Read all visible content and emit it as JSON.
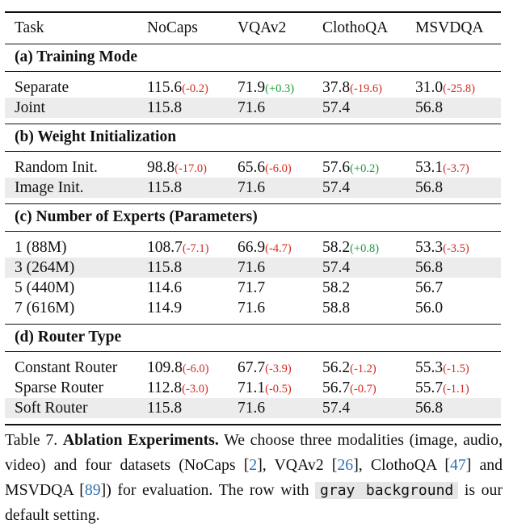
{
  "header": {
    "task": "Task",
    "cols": [
      "NoCaps",
      "VQAv2",
      "ClothoQA",
      "MSVDQA"
    ]
  },
  "sections": [
    {
      "title": "(a) Training Mode",
      "rows": [
        {
          "label": "Separate",
          "gray": false,
          "cells": [
            {
              "value": "115.6",
              "delta": "(-0.2)",
              "sign": "neg"
            },
            {
              "value": "71.9",
              "delta": "(+0.3)",
              "sign": "pos"
            },
            {
              "value": "37.8",
              "delta": "(-19.6)",
              "sign": "neg"
            },
            {
              "value": "31.0",
              "delta": "(-25.8)",
              "sign": "neg"
            }
          ]
        },
        {
          "label": "Joint",
          "gray": true,
          "cells": [
            {
              "value": "115.8"
            },
            {
              "value": "71.6"
            },
            {
              "value": "57.4"
            },
            {
              "value": "56.8"
            }
          ]
        }
      ]
    },
    {
      "title": "(b) Weight Initialization",
      "rows": [
        {
          "label": "Random Init.",
          "gray": false,
          "cells": [
            {
              "value": "98.8",
              "delta": "(-17.0)",
              "sign": "neg"
            },
            {
              "value": "65.6",
              "delta": "(-6.0)",
              "sign": "neg"
            },
            {
              "value": "57.6",
              "delta": "(+0.2)",
              "sign": "pos"
            },
            {
              "value": "53.1",
              "delta": "(-3.7)",
              "sign": "neg"
            }
          ]
        },
        {
          "label": "Image Init.",
          "gray": true,
          "cells": [
            {
              "value": "115.8"
            },
            {
              "value": "71.6"
            },
            {
              "value": "57.4"
            },
            {
              "value": "56.8"
            }
          ]
        }
      ]
    },
    {
      "title": "(c) Number of Experts (Parameters)",
      "rows": [
        {
          "label": "1 (88M)",
          "gray": false,
          "cells": [
            {
              "value": "108.7",
              "delta": "(-7.1)",
              "sign": "neg"
            },
            {
              "value": "66.9",
              "delta": "(-4.7)",
              "sign": "neg"
            },
            {
              "value": "58.2",
              "delta": "(+0.8)",
              "sign": "pos"
            },
            {
              "value": "53.3",
              "delta": "(-3.5)",
              "sign": "neg"
            }
          ]
        },
        {
          "label": "3 (264M)",
          "gray": true,
          "cells": [
            {
              "value": "115.8"
            },
            {
              "value": "71.6"
            },
            {
              "value": "57.4"
            },
            {
              "value": "56.8"
            }
          ]
        },
        {
          "label": "5 (440M)",
          "gray": false,
          "cells": [
            {
              "value": "114.6"
            },
            {
              "value": "71.7"
            },
            {
              "value": "58.2"
            },
            {
              "value": "56.7"
            }
          ]
        },
        {
          "label": "7 (616M)",
          "gray": false,
          "cells": [
            {
              "value": "114.9"
            },
            {
              "value": "71.6"
            },
            {
              "value": "58.8"
            },
            {
              "value": "56.0"
            }
          ]
        }
      ]
    },
    {
      "title": "(d) Router Type",
      "rows": [
        {
          "label": "Constant Router",
          "gray": false,
          "cells": [
            {
              "value": "109.8",
              "delta": "(-6.0)",
              "sign": "neg"
            },
            {
              "value": "67.7",
              "delta": "(-3.9)",
              "sign": "neg"
            },
            {
              "value": "56.2",
              "delta": "(-1.2)",
              "sign": "neg"
            },
            {
              "value": "55.3",
              "delta": "(-1.5)",
              "sign": "neg"
            }
          ]
        },
        {
          "label": "Sparse Router",
          "gray": false,
          "cells": [
            {
              "value": "112.8",
              "delta": "(-3.0)",
              "sign": "neg"
            },
            {
              "value": "71.1",
              "delta": "(-0.5)",
              "sign": "neg"
            },
            {
              "value": "56.7",
              "delta": "(-0.7)",
              "sign": "neg"
            },
            {
              "value": "55.7",
              "delta": "(-1.1)",
              "sign": "neg"
            }
          ]
        },
        {
          "label": "Soft Router",
          "gray": true,
          "cells": [
            {
              "value": "115.8"
            },
            {
              "value": "71.6"
            },
            {
              "value": "57.4"
            },
            {
              "value": "56.8"
            }
          ]
        }
      ]
    }
  ],
  "caption": {
    "prefix": "Table 7. ",
    "bold": "Ablation Experiments.",
    "part1": " We choose three modalities (image, audio, video) and four datasets (NoCaps [",
    "ref1": "2",
    "part2": "], VQAv2 [",
    "ref2": "26",
    "part3": "], ClothoQA [",
    "ref3": "47",
    "part4": "] and MSVDQA [",
    "ref4": "89",
    "part5": "]) for evaluation. The row with ",
    "graybox": "gray background",
    "part6": " is our default setting."
  },
  "colors": {
    "negative": "#d42a1f",
    "positive": "#1e9c3a",
    "gray_row": "#ececec",
    "ref": "#2f6fb0"
  }
}
